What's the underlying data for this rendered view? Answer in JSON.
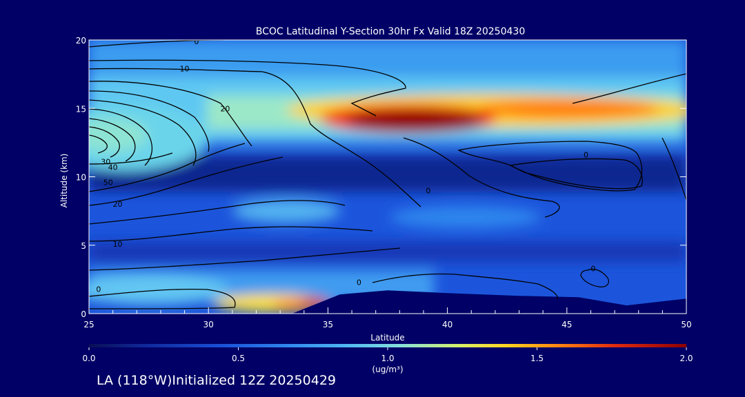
{
  "colors": {
    "background": "#000066",
    "text": "#ffffff",
    "contour_line": "#000000",
    "colormap": [
      "#0a0f55",
      "#102a9e",
      "#1a4fd6",
      "#2f86ee",
      "#4fb8f2",
      "#86e0dc",
      "#d6f06a",
      "#ffd420",
      "#ff8a12",
      "#e02b10",
      "#8c0004"
    ]
  },
  "chart_data": {
    "type": "heatmap",
    "title": "BCOC Latitudinal Y-Section 30hr  Fx Valid 18Z 20250430",
    "xlabel": "Latitude",
    "ylabel": "Altitude (km)",
    "xlim": [
      25,
      50
    ],
    "ylim": [
      0,
      20
    ],
    "x_ticks": [
      25,
      30,
      35,
      40,
      45,
      50
    ],
    "y_ticks": [
      0,
      5,
      10,
      15,
      20
    ],
    "colorbar": {
      "range": [
        0.0,
        2.0
      ],
      "ticks": [
        "0.0",
        "0.5",
        "1.0",
        "1.5",
        "2.0"
      ],
      "unit_label": "(ug/m³)"
    },
    "field_features": [
      {
        "feature": "elevated maximum",
        "lat_range": [
          35.5,
          41.5
        ],
        "alt_km": 14.4,
        "value": 2.0
      },
      {
        "feature": "upper band",
        "lat_range": [
          41,
          50
        ],
        "alt_km": 15.0,
        "value": 1.5
      },
      {
        "feature": "upper layer",
        "lat_range": [
          25,
          50
        ],
        "alt_km": 14.6,
        "value": 1.0
      },
      {
        "feature": "mid-level patch",
        "lat_range": [
          32,
          36
        ],
        "alt_km": 7.6,
        "value": 0.8
      },
      {
        "feature": "surface maximum",
        "lat_range": [
          33,
          35
        ],
        "alt_km": 0.6,
        "value": 1.7
      }
    ],
    "terrain": [
      {
        "lat": 33.5,
        "alt_km": 0.0
      },
      {
        "lat": 34.5,
        "alt_km": 0.7
      },
      {
        "lat": 35.5,
        "alt_km": 1.4
      },
      {
        "lat": 37.5,
        "alt_km": 1.7
      },
      {
        "lat": 40.0,
        "alt_km": 1.5
      },
      {
        "lat": 43.0,
        "alt_km": 1.3
      },
      {
        "lat": 45.5,
        "alt_km": 1.2
      },
      {
        "lat": 47.5,
        "alt_km": 0.6
      },
      {
        "lat": 50.0,
        "alt_km": 1.1
      }
    ],
    "contour_labels": [
      {
        "text": "0",
        "lat": 29.5,
        "alt_km": 19.9
      },
      {
        "text": "10",
        "lat": 29.0,
        "alt_km": 17.9
      },
      {
        "text": "20",
        "lat": 30.7,
        "alt_km": 15.0
      },
      {
        "text": "30",
        "lat": 25.7,
        "alt_km": 11.1
      },
      {
        "text": "40",
        "lat": 26.0,
        "alt_km": 10.7
      },
      {
        "text": "50",
        "lat": 25.8,
        "alt_km": 9.6
      },
      {
        "text": "20",
        "lat": 26.2,
        "alt_km": 8.0
      },
      {
        "text": "10",
        "lat": 26.2,
        "alt_km": 5.1
      },
      {
        "text": "0",
        "lat": 25.4,
        "alt_km": 1.8
      },
      {
        "text": "0",
        "lat": 36.3,
        "alt_km": 2.3
      },
      {
        "text": "0",
        "lat": 39.2,
        "alt_km": 9.0
      },
      {
        "text": "0",
        "lat": 45.8,
        "alt_km": 11.6
      },
      {
        "text": "0",
        "lat": 46.1,
        "alt_km": 3.3
      }
    ]
  },
  "footer": {
    "location_label": "LA (118°W)Initialized 12Z 20250429"
  }
}
